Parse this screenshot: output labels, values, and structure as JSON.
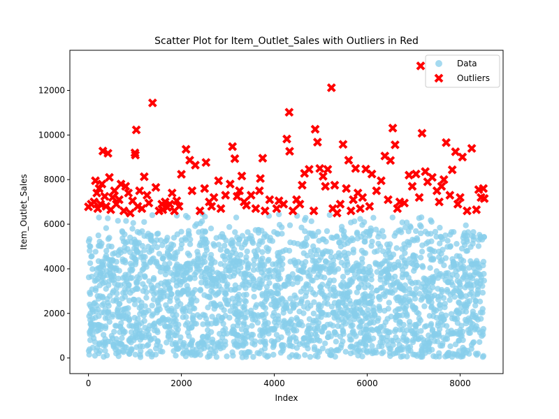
{
  "chart_data": {
    "type": "scatter",
    "title": "Scatter Plot for Item_Outlet_Sales with Outliers in Red",
    "xlabel": "Index",
    "ylabel": "Item_Outlet_Sales",
    "xlim": [
      -400,
      8925
    ],
    "ylim": [
      -700,
      13800
    ],
    "x_ticks": [
      0,
      2000,
      4000,
      6000,
      8000
    ],
    "y_ticks": [
      0,
      2000,
      4000,
      6000,
      8000,
      10000,
      12000
    ],
    "x_tick_labels": [
      "0",
      "2000",
      "4000",
      "6000",
      "8000"
    ],
    "y_tick_labels": [
      "0",
      "2000",
      "4000",
      "6000",
      "8000",
      "10000",
      "12000"
    ],
    "grid": false,
    "legend_position": "top-right",
    "colors": {
      "data": "#87ceeb",
      "outliers": "#ff0000"
    },
    "series": [
      {
        "name": "Data",
        "marker": "circle",
        "count": 8523,
        "x_range": [
          0,
          8522
        ],
        "y_range": [
          33,
          6470
        ],
        "note_values": "dense cloud of points, concentrated between 0 and 4500 with sparser points up to about 6400"
      },
      {
        "name": "Outliers",
        "marker": "x",
        "points": [
          [
            0,
            6780
          ],
          [
            60,
            6900
          ],
          [
            120,
            7000
          ],
          [
            150,
            7950
          ],
          [
            180,
            7400
          ],
          [
            200,
            6700
          ],
          [
            230,
            7600
          ],
          [
            260,
            6900
          ],
          [
            290,
            7800
          ],
          [
            310,
            9280
          ],
          [
            350,
            7250
          ],
          [
            380,
            6800
          ],
          [
            420,
            9180
          ],
          [
            450,
            8100
          ],
          [
            480,
            6650
          ],
          [
            520,
            7200
          ],
          [
            560,
            7500
          ],
          [
            600,
            6900
          ],
          [
            660,
            7100
          ],
          [
            700,
            7800
          ],
          [
            760,
            6600
          ],
          [
            800,
            7700
          ],
          [
            860,
            7400
          ],
          [
            900,
            6500
          ],
          [
            950,
            7050
          ],
          [
            1000,
            9200
          ],
          [
            1010,
            9100
          ],
          [
            1030,
            10230
          ],
          [
            1060,
            6800
          ],
          [
            1100,
            7500
          ],
          [
            1150,
            6700
          ],
          [
            1200,
            8130
          ],
          [
            1260,
            7300
          ],
          [
            1300,
            6950
          ],
          [
            1380,
            11440
          ],
          [
            1450,
            7650
          ],
          [
            1520,
            6600
          ],
          [
            1580,
            6900
          ],
          [
            1600,
            6650
          ],
          [
            1650,
            7000
          ],
          [
            1700,
            6750
          ],
          [
            1750,
            6900
          ],
          [
            1800,
            7400
          ],
          [
            1850,
            6600
          ],
          [
            1900,
            7050
          ],
          [
            1950,
            6800
          ],
          [
            2000,
            8240
          ],
          [
            2100,
            9360
          ],
          [
            2180,
            8870
          ],
          [
            2230,
            7500
          ],
          [
            2300,
            8650
          ],
          [
            2400,
            6600
          ],
          [
            2500,
            7600
          ],
          [
            2530,
            8770
          ],
          [
            2600,
            7000
          ],
          [
            2650,
            6800
          ],
          [
            2700,
            7200
          ],
          [
            2800,
            7950
          ],
          [
            2850,
            6700
          ],
          [
            2950,
            7300
          ],
          [
            3050,
            7800
          ],
          [
            3100,
            9480
          ],
          [
            3150,
            8940
          ],
          [
            3200,
            7250
          ],
          [
            3250,
            7500
          ],
          [
            3300,
            8160
          ],
          [
            3350,
            7000
          ],
          [
            3400,
            6850
          ],
          [
            3500,
            7300
          ],
          [
            3600,
            6700
          ],
          [
            3680,
            7500
          ],
          [
            3700,
            8050
          ],
          [
            3750,
            8960
          ],
          [
            3800,
            6600
          ],
          [
            3900,
            7100
          ],
          [
            4050,
            6700
          ],
          [
            4100,
            7050
          ],
          [
            4200,
            6900
          ],
          [
            4270,
            9820
          ],
          [
            4320,
            11020
          ],
          [
            4330,
            9270
          ],
          [
            4400,
            6600
          ],
          [
            4480,
            7100
          ],
          [
            4550,
            6900
          ],
          [
            4600,
            7750
          ],
          [
            4650,
            8280
          ],
          [
            4750,
            8460
          ],
          [
            4850,
            6600
          ],
          [
            4880,
            10260
          ],
          [
            4930,
            9680
          ],
          [
            4980,
            8500
          ],
          [
            5050,
            8150
          ],
          [
            5100,
            7700
          ],
          [
            5150,
            8460
          ],
          [
            5230,
            12120
          ],
          [
            5260,
            6700
          ],
          [
            5300,
            7750
          ],
          [
            5350,
            6500
          ],
          [
            5420,
            6900
          ],
          [
            5480,
            9580
          ],
          [
            5550,
            7600
          ],
          [
            5600,
            8870
          ],
          [
            5650,
            6600
          ],
          [
            5700,
            7100
          ],
          [
            5750,
            8500
          ],
          [
            5800,
            7400
          ],
          [
            5850,
            6700
          ],
          [
            5900,
            7200
          ],
          [
            5970,
            8470
          ],
          [
            6050,
            6800
          ],
          [
            6100,
            8250
          ],
          [
            6200,
            7500
          ],
          [
            6300,
            7950
          ],
          [
            6380,
            9060
          ],
          [
            6450,
            7100
          ],
          [
            6500,
            8860
          ],
          [
            6550,
            10310
          ],
          [
            6600,
            9560
          ],
          [
            6650,
            6700
          ],
          [
            6700,
            7000
          ],
          [
            6800,
            6950
          ],
          [
            6900,
            8200
          ],
          [
            6970,
            7700
          ],
          [
            7050,
            8250
          ],
          [
            7120,
            7200
          ],
          [
            7180,
            10080
          ],
          [
            7150,
            13100
          ],
          [
            7250,
            8360
          ],
          [
            7300,
            7900
          ],
          [
            7400,
            8100
          ],
          [
            7500,
            7500
          ],
          [
            7550,
            7000
          ],
          [
            7600,
            7700
          ],
          [
            7650,
            8000
          ],
          [
            7700,
            9660
          ],
          [
            7780,
            7300
          ],
          [
            7830,
            8440
          ],
          [
            7900,
            9250
          ],
          [
            7950,
            6900
          ],
          [
            8000,
            7200
          ],
          [
            8050,
            9010
          ],
          [
            8150,
            6600
          ],
          [
            8250,
            9400
          ],
          [
            8350,
            6650
          ],
          [
            8400,
            7550
          ],
          [
            8450,
            7200
          ],
          [
            8500,
            7600
          ],
          [
            8520,
            7150
          ]
        ]
      }
    ]
  }
}
